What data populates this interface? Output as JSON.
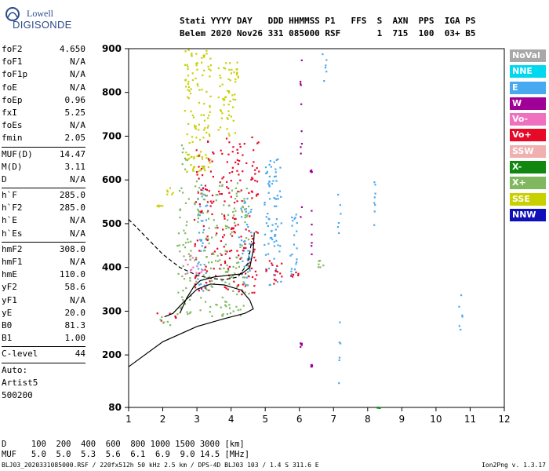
{
  "logo": {
    "line1": "Lowell",
    "line2": "DIGISONDE"
  },
  "header": {
    "row1": "Stati YYYY DAY   DDD HHMMSS P1   FFS  S  AXN  PPS  IGA PS",
    "row2": "Belem 2020 Nov26 331 085000 RSF       1  715  100  03+ B5"
  },
  "params": {
    "group1": [
      {
        "name": "foF2",
        "value": "4.650"
      },
      {
        "name": "foF1",
        "value": "N/A"
      },
      {
        "name": "foF1p",
        "value": "N/A"
      },
      {
        "name": "foE",
        "value": "N/A"
      },
      {
        "name": "foEp",
        "value": "0.96"
      },
      {
        "name": "fxI",
        "value": "5.25"
      },
      {
        "name": "foEs",
        "value": "N/A"
      },
      {
        "name": "fmin",
        "value": "2.05"
      }
    ],
    "group2": [
      {
        "name": "MUF(D)",
        "value": "14.47"
      },
      {
        "name": "M(D)",
        "value": "3.11"
      },
      {
        "name": "D",
        "value": "N/A"
      }
    ],
    "group3": [
      {
        "name": "h`F",
        "value": "285.0"
      },
      {
        "name": "h`F2",
        "value": "285.0"
      },
      {
        "name": "h`E",
        "value": "N/A"
      },
      {
        "name": "h`Es",
        "value": "N/A"
      }
    ],
    "group4": [
      {
        "name": "hmF2",
        "value": "308.0"
      },
      {
        "name": "hmF1",
        "value": "N/A"
      },
      {
        "name": "hmE",
        "value": "110.0"
      },
      {
        "name": "yF2",
        "value": "58.6"
      },
      {
        "name": "yF1",
        "value": "N/A"
      },
      {
        "name": "yE",
        "value": "20.0"
      },
      {
        "name": "B0",
        "value": "81.3"
      },
      {
        "name": "B1",
        "value": "1.00"
      }
    ],
    "clevel": {
      "name": "C-level",
      "value": "44"
    },
    "auto": [
      "Auto:",
      "Artist5",
      "500200"
    ]
  },
  "legend": [
    {
      "label": "NoVal",
      "color": "#a8a8a8"
    },
    {
      "label": "NNE",
      "color": "#00d8f0"
    },
    {
      "label": "E",
      "color": "#48a8f0"
    },
    {
      "label": "W",
      "color": "#a00098"
    },
    {
      "label": "Vo-",
      "color": "#f070c0"
    },
    {
      "label": "Vo+",
      "color": "#e80828"
    },
    {
      "label": "SSW",
      "color": "#f0b0b0"
    },
    {
      "label": "X-",
      "color": "#108810"
    },
    {
      "label": "X+",
      "color": "#80b860"
    },
    {
      "label": "SSE",
      "color": "#c8d000"
    },
    {
      "label": "NNW",
      "color": "#1010b8"
    }
  ],
  "footer": {
    "d_row": "D     100  200  400  600  800 1000 1500 3000 [km]",
    "muf_row": "MUF   5.0  5.0  5.3  5.6  6.1  6.9  9.0 14.5 [MHz]",
    "info": "BLJ03_2020331085000.RSF / 220fx512h 50 kHz 2.5 km / DPS-4D BLJ03 103 / 1.4 S 311.6 E",
    "version": "Ion2Png v. 1.3.17"
  },
  "chart_data": {
    "type": "scatter",
    "title": "",
    "xlabel": "",
    "ylabel": "",
    "xlim": [
      1,
      12
    ],
    "ylim": [
      80,
      900
    ],
    "x_ticks": [
      1,
      2,
      3,
      4,
      5,
      6,
      7,
      8,
      9,
      10,
      11,
      12
    ],
    "y_ticks": [
      80,
      200,
      300,
      400,
      500,
      600,
      700,
      800,
      900
    ],
    "grid": false,
    "legend_position": "right",
    "series": [
      {
        "name": "NNE",
        "color": "#00d8f0",
        "clusters": []
      },
      {
        "name": "E",
        "color": "#48a8f0",
        "clusters": [
          {
            "x": [
              4.2,
              4.6
            ],
            "y": [
              360,
              560
            ]
          },
          {
            "x": [
              4.95,
              5.45
            ],
            "y": [
              360,
              650
            ]
          },
          {
            "x": [
              5.7,
              5.95
            ],
            "y": [
              380,
              530
            ]
          },
          {
            "x": [
              6.65,
              6.8
            ],
            "y": [
              820,
              890
            ]
          },
          {
            "x": [
              7.12,
              7.18
            ],
            "y": [
              100,
              290
            ]
          },
          {
            "x": [
              7.1,
              7.2
            ],
            "y": [
              480,
              570
            ]
          },
          {
            "x": [
              8.1,
              8.2
            ],
            "y": [
              480,
              620
            ]
          },
          {
            "x": [
              10.65,
              10.75
            ],
            "y": [
              255,
              340
            ]
          },
          {
            "x": [
              3.0,
              3.3
            ],
            "y": [
              340,
              600
            ]
          }
        ]
      },
      {
        "name": "W",
        "color": "#a00098",
        "clusters": [
          {
            "x": [
              6.0,
              6.05
            ],
            "y": [
              490,
              890
            ]
          },
          {
            "x": [
              6.0,
              6.05
            ],
            "y": [
              220,
              240
            ]
          },
          {
            "x": [
              6.3,
              6.35
            ],
            "y": [
              420,
              540
            ]
          },
          {
            "x": [
              6.3,
              6.35
            ],
            "y": [
              175,
              180
            ]
          },
          {
            "x": [
              6.3,
              6.35
            ],
            "y": [
              620,
              625
            ]
          }
        ]
      },
      {
        "name": "Vo-",
        "color": "#f070c0",
        "clusters": [
          {
            "x": [
              2.6,
              3.2
            ],
            "y": [
              380,
              430
            ]
          }
        ]
      },
      {
        "name": "Vo+",
        "color": "#e80828",
        "clusters": [
          {
            "x": [
              2.9,
              4.8
            ],
            "y": [
              340,
              700
            ]
          },
          {
            "x": [
              5.0,
              5.5
            ],
            "y": [
              360,
              420
            ]
          },
          {
            "x": [
              5.7,
              6.0
            ],
            "y": [
              375,
              395
            ]
          },
          {
            "x": [
              1.8,
              2.4
            ],
            "y": [
              280,
              300
            ]
          }
        ]
      },
      {
        "name": "SSW",
        "color": "#f0b0b0",
        "clusters": []
      },
      {
        "name": "X-",
        "color": "#108810",
        "clusters": [
          {
            "x": [
              8.25,
              8.35
            ],
            "y": [
              80,
              82
            ]
          }
        ]
      },
      {
        "name": "X+",
        "color": "#80b860",
        "clusters": [
          {
            "x": [
              2.4,
              4.5
            ],
            "y": [
              290,
              600
            ]
          },
          {
            "x": [
              1.8,
              2.2
            ],
            "y": [
              270,
              290
            ]
          },
          {
            "x": [
              2.5,
              2.7
            ],
            "y": [
              620,
              700
            ]
          },
          {
            "x": [
              6.5,
              6.7
            ],
            "y": [
              400,
              420
            ]
          }
        ]
      },
      {
        "name": "SSE",
        "color": "#c8d000",
        "clusters": [
          {
            "x": [
              2.6,
              3.4
            ],
            "y": [
              620,
              900
            ]
          },
          {
            "x": [
              1.8,
              2.0
            ],
            "y": [
              540,
              545
            ]
          },
          {
            "x": [
              2.1,
              2.4
            ],
            "y": [
              560,
              590
            ]
          },
          {
            "x": [
              3.6,
              4.2
            ],
            "y": [
              700,
              880
            ]
          }
        ]
      },
      {
        "name": "NNW",
        "color": "#1010b8",
        "clusters": []
      }
    ],
    "traces": [
      {
        "style": "solid",
        "points": [
          [
            1,
            173
          ],
          [
            2,
            230
          ],
          [
            3,
            265
          ],
          [
            3.8,
            283
          ],
          [
            4.4,
            295
          ],
          [
            4.65,
            305
          ],
          [
            4.55,
            325
          ],
          [
            4.3,
            348
          ],
          [
            3.8,
            360
          ],
          [
            3.4,
            362
          ],
          [
            3.0,
            350
          ],
          [
            2.6,
            320
          ],
          [
            2.3,
            295
          ],
          [
            2.05,
            287
          ]
        ]
      },
      {
        "style": "solid",
        "points": [
          [
            2.5,
            295
          ],
          [
            2.7,
            330
          ],
          [
            2.9,
            355
          ],
          [
            3.1,
            370
          ],
          [
            3.5,
            378
          ],
          [
            3.9,
            382
          ],
          [
            4.3,
            385
          ],
          [
            4.55,
            400
          ],
          [
            4.65,
            440
          ],
          [
            4.68,
            480
          ]
        ]
      },
      {
        "style": "dashed",
        "points": [
          [
            1,
            510
          ],
          [
            1.5,
            470
          ],
          [
            2,
            430
          ],
          [
            2.5,
            400
          ],
          [
            3,
            382
          ],
          [
            3.4,
            375
          ],
          [
            3.8,
            372
          ],
          [
            4.2,
            378
          ],
          [
            4.5,
            410
          ],
          [
            4.6,
            460
          ]
        ]
      }
    ]
  }
}
